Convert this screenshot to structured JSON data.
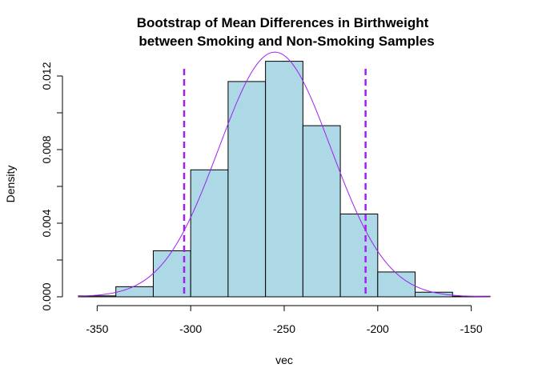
{
  "chart_data": {
    "type": "bar",
    "title_lines": [
      "Bootstrap of Mean Differences in Birthweight",
      "between Smoking and Non-Smoking Samples"
    ],
    "xlabel": "vec",
    "ylabel": "Density",
    "xlim": [
      -360,
      -140
    ],
    "ylim": [
      0,
      0.0135
    ],
    "x_ticks": [
      -350,
      -300,
      -250,
      -200,
      -150
    ],
    "x_tick_labels": [
      "-350",
      "-300",
      "-250",
      "-200",
      "-150"
    ],
    "y_ticks": [
      0,
      0.002,
      0.004,
      0.006,
      0.008,
      0.01,
      0.012
    ],
    "y_tick_labels": [
      "0.000",
      "0.004",
      "0.008",
      "0.012"
    ],
    "y_labeled_ticks": [
      0,
      0.004,
      0.008,
      0.012
    ],
    "bins": [
      {
        "start": -360,
        "end": -340,
        "density": 5e-05
      },
      {
        "start": -340,
        "end": -320,
        "density": 0.00055
      },
      {
        "start": -320,
        "end": -300,
        "density": 0.0025
      },
      {
        "start": -300,
        "end": -280,
        "density": 0.0069
      },
      {
        "start": -280,
        "end": -260,
        "density": 0.0117
      },
      {
        "start": -260,
        "end": -240,
        "density": 0.0128
      },
      {
        "start": -240,
        "end": -220,
        "density": 0.0093
      },
      {
        "start": -220,
        "end": -200,
        "density": 0.0045
      },
      {
        "start": -200,
        "end": -180,
        "density": 0.00135
      },
      {
        "start": -180,
        "end": -160,
        "density": 0.00025
      },
      {
        "start": -160,
        "end": -140,
        "density": 3e-05
      }
    ],
    "normal_curve": {
      "mean": -255,
      "sd": 30
    },
    "reference_lines": [
      -303.5,
      -206.5
    ],
    "colors": {
      "bar_fill": "#add8e6",
      "bar_stroke": "#000000",
      "curve": "#a020f0",
      "reference_line": "#a020f0"
    },
    "grid": false
  }
}
